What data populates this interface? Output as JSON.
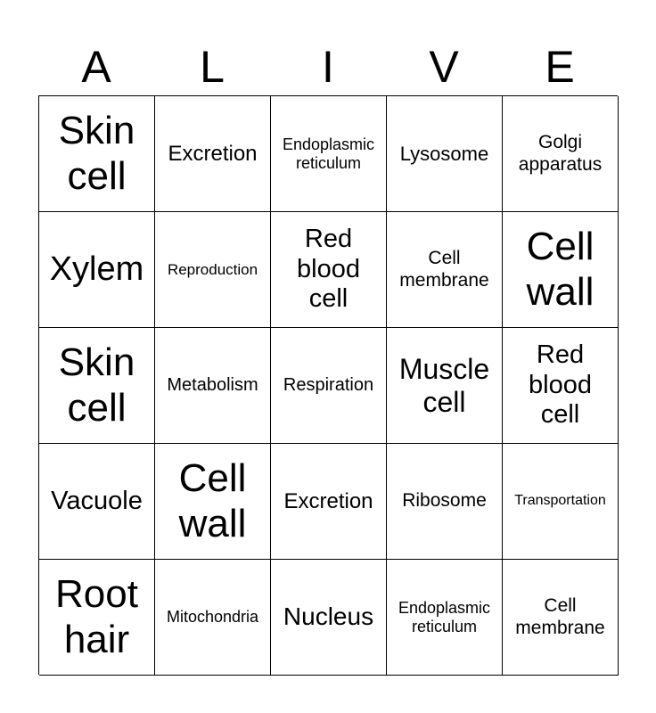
{
  "header": {
    "letters": [
      "A",
      "L",
      "I",
      "V",
      "E"
    ]
  },
  "cells": [
    [
      "Skin cell",
      "Excretion",
      "Endoplasmic reticulum",
      "Lysosome",
      "Golgi apparatus"
    ],
    [
      "Xylem",
      "Reproduction",
      "Red blood cell",
      "Cell membrane",
      "Cell wall"
    ],
    [
      "Skin cell",
      "Metabolism",
      "Respiration",
      "Muscle cell",
      "Red blood cell"
    ],
    [
      "Vacuole",
      "Cell wall",
      "Excretion",
      "Ribosome",
      "Transportation"
    ],
    [
      "Root hair",
      "Mitochondria",
      "Nucleus",
      "Endoplasmic reticulum",
      "Cell membrane"
    ]
  ]
}
